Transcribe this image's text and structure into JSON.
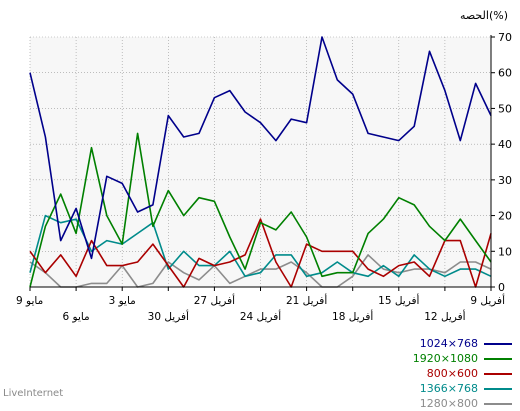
{
  "chart_data": {
    "type": "line",
    "ylabel": "الحصه(%)",
    "ylim": [
      0,
      70
    ],
    "y_ticks": [
      0,
      10,
      20,
      30,
      40,
      50,
      60,
      70
    ],
    "x_tick_labels": [
      "9 مايو",
      "6 مايو",
      "3 مايو",
      "30 أفريل",
      "27 أفريل",
      "24 أفريل",
      "21 أفريل",
      "18 أفريل",
      "15 أفريل",
      "12 أفريل",
      "9 أفريل"
    ],
    "grid": true,
    "legend_position": "bottom-right",
    "series": [
      {
        "name": "1024×768",
        "color": "#00008b",
        "values": [
          60,
          42,
          13,
          22,
          8,
          31,
          29,
          21,
          23,
          48,
          42,
          43,
          53,
          55,
          49,
          46,
          41,
          47,
          46,
          70,
          58,
          54,
          43,
          42,
          41,
          45,
          66,
          55,
          41,
          57,
          48
        ]
      },
      {
        "name": "1920×1080",
        "color": "#008000",
        "values": [
          0,
          17,
          26,
          15,
          39,
          20,
          12,
          43,
          17,
          27,
          20,
          25,
          24,
          14,
          5,
          18,
          16,
          21,
          14,
          3,
          4,
          4,
          15,
          19,
          25,
          23,
          17,
          13,
          19,
          13,
          7
        ]
      },
      {
        "name": "800×600",
        "color": "#aa0000",
        "values": [
          10,
          4,
          9,
          3,
          13,
          6,
          6,
          7,
          12,
          6,
          0,
          8,
          6,
          7,
          9,
          19,
          7,
          0,
          12,
          10,
          10,
          10,
          5,
          3,
          6,
          7,
          3,
          13,
          13,
          0,
          15
        ]
      },
      {
        "name": "1366×768",
        "color": "#008b8b",
        "values": [
          4,
          20,
          18,
          19,
          10,
          13,
          12,
          15,
          18,
          5,
          10,
          6,
          6,
          10,
          3,
          4,
          9,
          9,
          3,
          4,
          7,
          4,
          3,
          6,
          3,
          9,
          5,
          3,
          5,
          5,
          3
        ]
      },
      {
        "name": "1280×800",
        "color": "#8c8c8c",
        "values": [
          7,
          4,
          0,
          0,
          1,
          1,
          6,
          0,
          1,
          7,
          4,
          2,
          6,
          1,
          3,
          5,
          5,
          7,
          4,
          0,
          0,
          3,
          9,
          5,
          4,
          5,
          5,
          4,
          7,
          7,
          5
        ]
      }
    ]
  },
  "footer": {
    "watermark": "LiveInternet"
  }
}
